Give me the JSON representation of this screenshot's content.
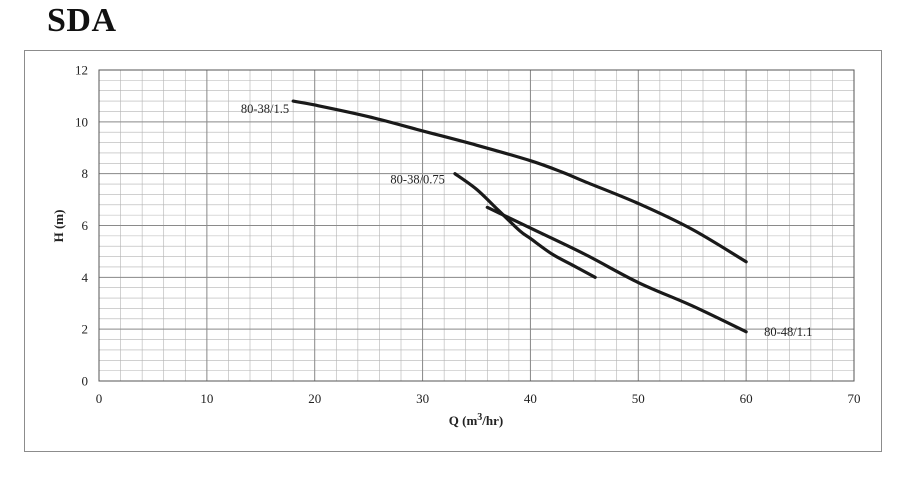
{
  "page": {
    "title": "SDA"
  },
  "chart_data": {
    "type": "line",
    "title": "SDA",
    "xlabel": "Q (m³/hr)",
    "xlabel_parts": {
      "pre": "Q (m",
      "sup": "3",
      "post": "/hr)"
    },
    "ylabel": "H (m)",
    "xlim": [
      0,
      70
    ],
    "ylim": [
      0,
      12
    ],
    "xticks": [
      0,
      10,
      20,
      30,
      40,
      50,
      60,
      70
    ],
    "yticks": [
      0,
      2,
      4,
      6,
      8,
      10,
      12
    ],
    "grid": true,
    "minor_grid": {
      "x_step": 2,
      "y_step": 0.4
    },
    "series": [
      {
        "name": "80-38/1.5",
        "x": [
          18,
          20,
          25,
          30,
          35,
          40,
          43,
          45,
          50,
          55,
          60
        ],
        "y": [
          10.8,
          10.65,
          10.2,
          9.65,
          9.1,
          8.5,
          8.05,
          7.7,
          6.85,
          5.85,
          4.6
        ]
      },
      {
        "name": "80-38/0.75",
        "x": [
          33,
          35,
          37,
          39,
          40,
          42,
          44,
          46
        ],
        "y": [
          8.0,
          7.4,
          6.6,
          5.8,
          5.5,
          4.9,
          4.45,
          4.0
        ]
      },
      {
        "name": "80-48/1.1",
        "x": [
          36,
          40,
          45,
          50,
          55,
          60
        ],
        "y": [
          6.7,
          5.9,
          4.9,
          3.8,
          2.9,
          1.9
        ]
      }
    ],
    "color": "#1a1a1a",
    "grid_color": "#8a8a8a"
  }
}
